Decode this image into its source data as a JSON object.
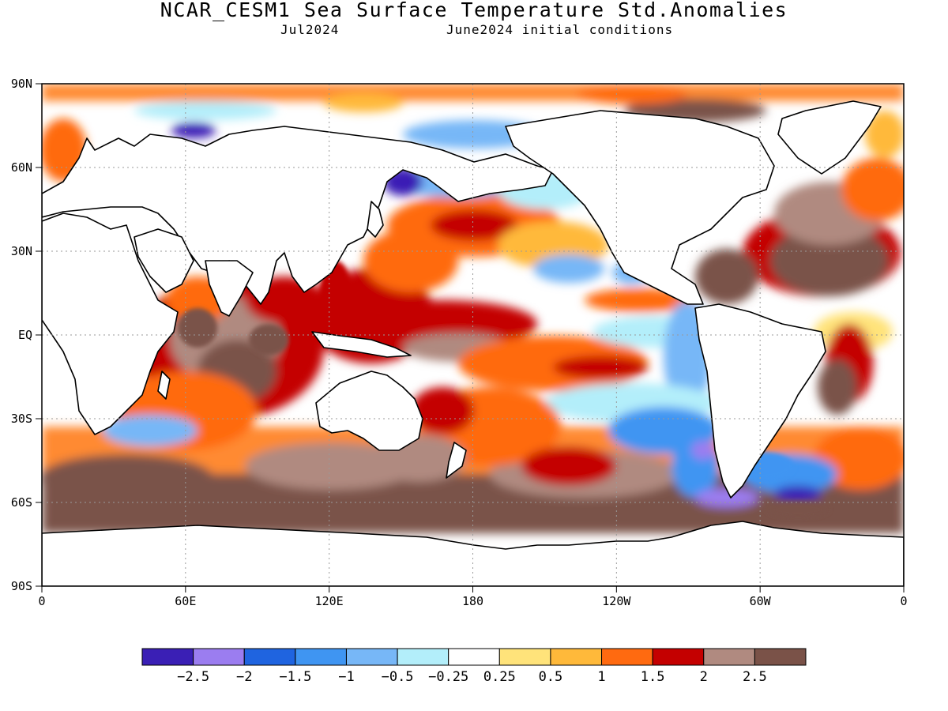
{
  "title": "NCAR_CESM1 Sea Surface Temperature Std.Anomalies",
  "subtitle_left": "Jul2024",
  "subtitle_right": "June2024 initial conditions",
  "lat_labels": [
    "90N",
    "60N",
    "30N",
    "EQ",
    "30S",
    "60S",
    "90S"
  ],
  "lon_labels": [
    "0",
    "60E",
    "120E",
    "180",
    "120W",
    "60W",
    "0"
  ],
  "colorbar": {
    "colors": [
      "#3a1fb5",
      "#9b7df0",
      "#1f64e0",
      "#3f95f2",
      "#77b7f7",
      "#b3eefa",
      "#ffffff",
      "#ffe37a",
      "#ffb93a",
      "#ff6a10",
      "#c40000",
      "#b08a80",
      "#7a5248"
    ],
    "tick_labels": [
      "−2.5",
      "−2",
      "−1.5",
      "−1",
      "−0.5",
      "−0.25",
      "0.25",
      "0.5",
      "1",
      "1.5",
      "2",
      "2.5"
    ]
  },
  "map": {
    "lon_range": [
      0,
      360
    ],
    "lat_range": [
      -90,
      90
    ],
    "grid": "dotted"
  }
}
